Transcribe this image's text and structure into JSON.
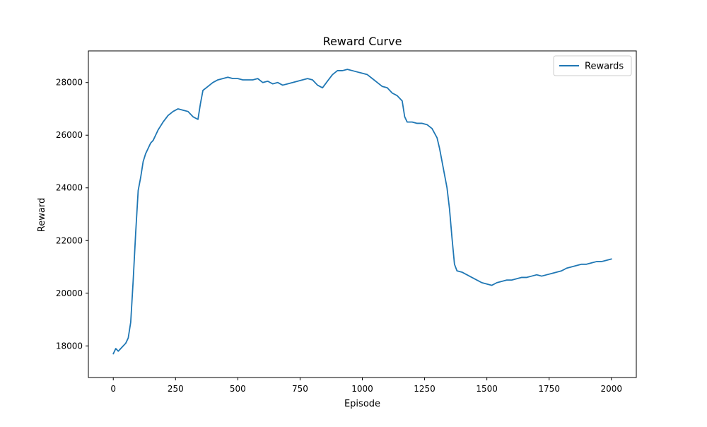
{
  "chart_data": {
    "type": "line",
    "title": "Reward Curve",
    "xlabel": "Episode",
    "ylabel": "Reward",
    "xlim": [
      -100,
      2100
    ],
    "ylim": [
      16800,
      29200
    ],
    "x_ticks": [
      0,
      250,
      500,
      750,
      1000,
      1250,
      1500,
      1750,
      2000
    ],
    "y_ticks": [
      18000,
      20000,
      22000,
      24000,
      26000,
      28000
    ],
    "grid": false,
    "legend": {
      "position": "top-right"
    },
    "series": [
      {
        "name": "Rewards",
        "color": "#1f77b4",
        "x": [
          0,
          10,
          20,
          30,
          40,
          50,
          60,
          70,
          80,
          90,
          100,
          110,
          120,
          130,
          140,
          150,
          160,
          170,
          180,
          190,
          200,
          220,
          240,
          260,
          280,
          300,
          320,
          340,
          350,
          360,
          380,
          400,
          420,
          440,
          460,
          480,
          500,
          520,
          540,
          560,
          580,
          600,
          620,
          640,
          660,
          680,
          700,
          720,
          740,
          760,
          780,
          800,
          820,
          840,
          860,
          880,
          900,
          920,
          940,
          960,
          980,
          1000,
          1020,
          1040,
          1060,
          1080,
          1100,
          1120,
          1140,
          1160,
          1170,
          1180,
          1200,
          1220,
          1240,
          1260,
          1280,
          1300,
          1310,
          1320,
          1330,
          1340,
          1350,
          1360,
          1370,
          1380,
          1400,
          1420,
          1440,
          1460,
          1480,
          1500,
          1520,
          1540,
          1560,
          1580,
          1600,
          1620,
          1640,
          1660,
          1680,
          1700,
          1720,
          1740,
          1760,
          1780,
          1800,
          1820,
          1840,
          1860,
          1880,
          1900,
          1920,
          1940,
          1960,
          1980,
          2000
        ],
        "y": [
          17700,
          17900,
          17800,
          17900,
          18000,
          18100,
          18300,
          18900,
          20500,
          22300,
          23900,
          24400,
          25000,
          25300,
          25500,
          25700,
          25800,
          26000,
          26200,
          26350,
          26500,
          26750,
          26900,
          27000,
          26950,
          26900,
          26700,
          26600,
          27200,
          27700,
          27850,
          28000,
          28100,
          28150,
          28200,
          28150,
          28150,
          28100,
          28100,
          28100,
          28150,
          28000,
          28050,
          27950,
          28000,
          27900,
          27950,
          28000,
          28050,
          28100,
          28150,
          28100,
          27900,
          27800,
          28050,
          28300,
          28450,
          28450,
          28500,
          28450,
          28400,
          28350,
          28300,
          28150,
          28000,
          27850,
          27800,
          27600,
          27500,
          27300,
          26700,
          26500,
          26500,
          26450,
          26450,
          26400,
          26250,
          25900,
          25500,
          25000,
          24500,
          24000,
          23200,
          22100,
          21100,
          20850,
          20800,
          20700,
          20600,
          20500,
          20400,
          20350,
          20300,
          20400,
          20450,
          20500,
          20500,
          20550,
          20600,
          20600,
          20650,
          20700,
          20650,
          20700,
          20750,
          20800,
          20850,
          20950,
          21000,
          21050,
          21100,
          21100,
          21150,
          21200,
          21200,
          21250,
          21300
        ]
      }
    ]
  }
}
